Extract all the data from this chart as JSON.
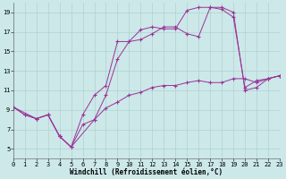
{
  "background_color": "#cce8e8",
  "grid_color": "#aacccc",
  "line_color": "#993399",
  "marker": "+",
  "marker_size": 3.5,
  "marker_linewidth": 0.8,
  "line_width": 0.7,
  "xlim": [
    0,
    23
  ],
  "ylim": [
    4,
    20
  ],
  "xticks": [
    0,
    1,
    2,
    3,
    4,
    5,
    6,
    7,
    8,
    9,
    10,
    11,
    12,
    13,
    14,
    15,
    16,
    17,
    18,
    19,
    20,
    21,
    22,
    23
  ],
  "yticks": [
    5,
    7,
    9,
    11,
    13,
    15,
    17,
    19
  ],
  "xlabel": "Windchill (Refroidissement éolien,°C)",
  "xlabel_fontsize": 5.5,
  "tick_fontsize": 5.0,
  "lines": [
    {
      "x": [
        0,
        1,
        2,
        3,
        4,
        5,
        6,
        7,
        8,
        9,
        10,
        11,
        12,
        13,
        14,
        15,
        16,
        17,
        18,
        19,
        20,
        21,
        22,
        23
      ],
      "y": [
        9.3,
        8.5,
        8.1,
        8.5,
        6.3,
        5.2,
        7.5,
        8.0,
        9.2,
        9.8,
        10.5,
        10.8,
        11.3,
        11.5,
        11.5,
        11.8,
        12.0,
        11.8,
        11.8,
        12.2,
        12.2,
        11.8,
        12.2,
        12.5
      ]
    },
    {
      "x": [
        0,
        1,
        2,
        3,
        4,
        5,
        7,
        8,
        9,
        10,
        11,
        12,
        13,
        14,
        15,
        16,
        17,
        18,
        19,
        20,
        21,
        22,
        23
      ],
      "y": [
        9.3,
        8.5,
        8.1,
        8.5,
        6.3,
        5.2,
        8.0,
        10.5,
        14.2,
        16.0,
        16.2,
        16.8,
        17.5,
        17.5,
        16.8,
        16.5,
        19.5,
        19.3,
        18.5,
        11.3,
        12.0,
        12.2,
        12.5
      ]
    },
    {
      "x": [
        0,
        2,
        3,
        4,
        5,
        6,
        7,
        8,
        9,
        10,
        11,
        12,
        13,
        14,
        15,
        16,
        17,
        18,
        19,
        20,
        21,
        22,
        23
      ],
      "y": [
        9.3,
        8.1,
        8.5,
        6.3,
        5.2,
        8.5,
        10.5,
        11.5,
        16.0,
        16.0,
        17.2,
        17.5,
        17.3,
        17.3,
        19.2,
        19.5,
        19.5,
        19.5,
        19.0,
        11.0,
        11.3,
        12.2,
        12.5
      ]
    }
  ]
}
